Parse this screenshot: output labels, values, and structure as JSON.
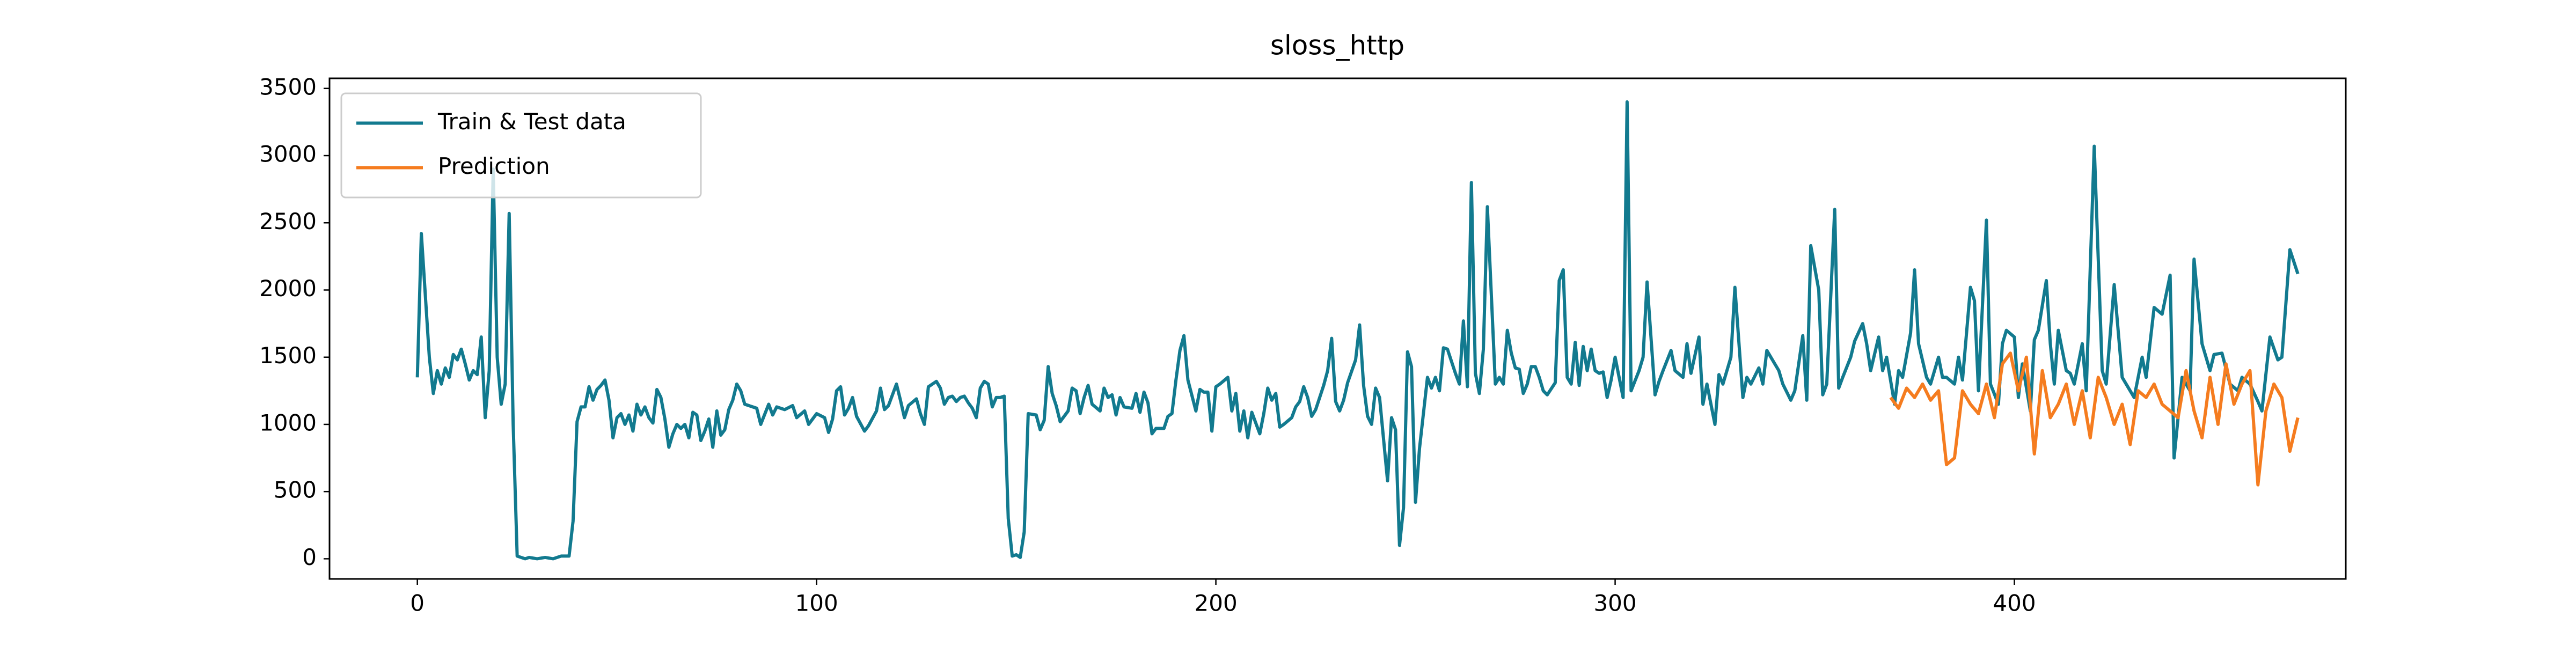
{
  "chart_data": {
    "type": "line",
    "title": "sloss_http",
    "xlim": [
      -22,
      483
    ],
    "ylim": [
      -150,
      3575
    ],
    "xticks": [
      0,
      100,
      200,
      300,
      400
    ],
    "yticks": [
      0,
      500,
      1000,
      1500,
      2000,
      2500,
      3000,
      3500
    ],
    "grid": false,
    "legend": "upper left",
    "series": [
      {
        "name": "Train & Test data",
        "color": "#127a8f",
        "x": [
          0,
          1,
          3,
          4,
          5,
          6,
          7,
          8,
          9,
          10,
          11,
          12,
          13,
          14,
          15,
          16,
          17,
          18,
          19,
          20,
          21,
          22,
          23,
          24,
          25,
          27,
          28,
          30,
          32,
          34,
          36,
          38,
          39,
          40,
          41,
          42,
          43,
          44,
          45,
          46,
          47,
          48,
          49,
          50,
          51,
          52,
          53,
          54,
          55,
          56,
          57,
          58,
          59,
          60,
          61,
          62,
          63,
          64,
          65,
          66,
          67,
          68,
          69,
          70,
          71,
          72,
          73,
          74,
          75,
          76,
          77,
          78,
          79,
          80,
          81,
          82,
          84,
          85,
          86,
          88,
          89,
          90,
          92,
          94,
          95,
          97,
          98,
          100,
          102,
          103,
          104,
          105,
          106,
          107,
          108,
          109,
          110,
          112,
          113,
          115,
          116,
          117,
          118,
          119,
          120,
          121,
          122,
          123,
          125,
          126,
          127,
          128,
          130,
          131,
          132,
          133,
          134,
          135,
          136,
          137,
          138,
          139,
          140,
          141,
          142,
          143,
          144,
          145,
          146,
          147,
          148,
          149,
          150,
          151,
          152,
          153,
          155,
          156,
          157,
          158,
          159,
          160,
          161,
          163,
          164,
          165,
          166,
          167,
          168,
          169,
          171,
          172,
          173,
          174,
          175,
          176,
          177,
          179,
          180,
          181,
          182,
          183,
          184,
          185,
          187,
          188,
          189,
          190,
          191,
          192,
          193,
          195,
          196,
          197,
          198,
          199,
          200,
          201,
          203,
          204,
          205,
          206,
          207,
          208,
          209,
          211,
          212,
          213,
          214,
          215,
          216,
          217,
          219,
          220,
          221,
          222,
          223,
          224,
          225,
          227,
          228,
          229,
          230,
          231,
          232,
          233,
          235,
          236,
          237,
          238,
          239,
          240,
          241,
          243,
          244,
          245,
          246,
          247,
          248,
          249,
          250,
          251,
          253,
          254,
          255,
          256,
          257,
          258,
          260,
          261,
          262,
          263,
          264,
          265,
          266,
          267,
          268,
          270,
          271,
          272,
          273,
          274,
          275,
          276,
          277,
          278,
          279,
          280,
          281,
          282,
          283,
          285,
          286,
          287,
          288,
          289,
          290,
          291,
          292,
          293,
          294,
          295,
          296,
          297,
          298,
          299,
          300,
          302,
          303,
          304,
          306,
          307,
          308,
          310,
          311,
          312,
          314,
          315,
          317,
          318,
          319,
          321,
          322,
          323,
          325,
          326,
          327,
          329,
          330,
          332,
          333,
          334,
          336,
          337,
          338,
          340,
          341,
          342,
          344,
          345,
          347,
          348,
          349,
          351,
          352,
          353,
          355,
          356,
          357,
          359,
          360,
          362,
          363,
          364,
          366,
          367,
          368,
          370,
          371,
          372,
          374,
          375,
          376,
          378,
          379,
          381,
          382,
          383,
          385,
          386,
          387,
          389,
          390,
          391,
          393,
          394,
          396,
          397,
          398,
          400,
          401,
          402,
          404,
          405,
          406,
          408,
          409,
          410,
          411,
          413,
          414,
          415,
          417,
          418,
          420,
          422,
          423,
          425,
          427,
          428,
          430,
          432,
          433,
          435,
          437,
          439,
          440,
          442,
          444,
          445,
          447,
          449,
          450,
          452,
          454,
          456,
          457,
          459,
          461,
          462,
          464,
          466,
          467,
          469,
          471
        ],
        "values": [
          1350,
          2420,
          1500,
          1230,
          1400,
          1300,
          1420,
          1350,
          1520,
          1480,
          1560,
          1450,
          1330,
          1400,
          1370,
          1650,
          1050,
          1400,
          2900,
          1500,
          1150,
          1300,
          2570,
          1000,
          20,
          0,
          10,
          0,
          10,
          0,
          20,
          20,
          280,
          1020,
          1130,
          1130,
          1280,
          1180,
          1260,
          1290,
          1330,
          1180,
          900,
          1050,
          1080,
          1000,
          1070,
          950,
          1150,
          1070,
          1130,
          1050,
          1010,
          1260,
          1200,
          1040,
          830,
          930,
          1000,
          970,
          1000,
          900,
          1090,
          1070,
          880,
          950,
          1040,
          830,
          1100,
          920,
          960,
          1110,
          1180,
          1300,
          1250,
          1150,
          1130,
          1120,
          1000,
          1150,
          1070,
          1130,
          1110,
          1140,
          1050,
          1100,
          1000,
          1080,
          1050,
          940,
          1040,
          1250,
          1280,
          1070,
          1120,
          1200,
          1060,
          950,
          990,
          1100,
          1270,
          1110,
          1140,
          1220,
          1300,
          1180,
          1050,
          1140,
          1190,
          1080,
          1000,
          1280,
          1320,
          1270,
          1150,
          1200,
          1210,
          1170,
          1200,
          1210,
          1160,
          1120,
          1050,
          1270,
          1320,
          1300,
          1130,
          1200,
          1200,
          1210,
          300,
          20,
          30,
          10,
          200,
          1080,
          1070,
          960,
          1030,
          1430,
          1230,
          1140,
          1020,
          1100,
          1270,
          1250,
          1080,
          1200,
          1290,
          1150,
          1100,
          1270,
          1200,
          1220,
          1070,
          1200,
          1130,
          1120,
          1230,
          1090,
          1240,
          1160,
          930,
          970,
          970,
          1060,
          1080,
          1330,
          1550,
          1660,
          1330,
          1100,
          1260,
          1240,
          1240,
          950,
          1280,
          1300,
          1350,
          1100,
          1230,
          950,
          1100,
          900,
          1090,
          930,
          1080,
          1270,
          1180,
          1230,
          980,
          1000,
          1050,
          1130,
          1170,
          1280,
          1200,
          1060,
          1110,
          1290,
          1400,
          1640,
          1170,
          1100,
          1180,
          1310,
          1480,
          1740,
          1290,
          1060,
          1000,
          1270,
          1200,
          580,
          1050,
          960,
          100,
          380,
          1540,
          1430,
          420,
          820,
          1350,
          1270,
          1350,
          1250,
          1570,
          1560,
          1380,
          1300,
          1770,
          1280,
          2800,
          1380,
          1230,
          1560,
          2620,
          1300,
          1350,
          1300,
          1700,
          1530,
          1420,
          1410,
          1230,
          1300,
          1430,
          1430,
          1350,
          1250,
          1220,
          1310,
          2070,
          2150,
          1350,
          1300,
          1610,
          1290,
          1580,
          1400,
          1560,
          1400,
          1380,
          1390,
          1200,
          1330,
          1500,
          1200,
          3400,
          1250,
          1400,
          1500,
          2060,
          1220,
          1320,
          1400,
          1550,
          1400,
          1350,
          1600,
          1380,
          1650,
          1150,
          1300,
          1000,
          1370,
          1300,
          1500,
          2020,
          1200,
          1350,
          1300,
          1420,
          1300,
          1550,
          1450,
          1400,
          1300,
          1180,
          1250,
          1660,
          1180,
          2330,
          2000,
          1220,
          1300,
          2600,
          1270,
          1350,
          1500,
          1620,
          1750,
          1600,
          1400,
          1650,
          1400,
          1500,
          1150,
          1400,
          1350,
          1680,
          2150,
          1600,
          1350,
          1300,
          1500,
          1350,
          1350,
          1300,
          1500,
          1330,
          2020,
          1920,
          1250,
          2520,
          1300,
          1150,
          1600,
          1700,
          1650,
          1200,
          1450,
          1100,
          1630,
          1700,
          2070,
          1600,
          1300,
          1700,
          1400,
          1380,
          1300,
          1600,
          1250,
          3070,
          1400,
          1300,
          2040,
          1350,
          1300,
          1200,
          1500,
          1350,
          1870,
          1820,
          2110,
          750,
          1350,
          1250,
          2230,
          1600,
          1400,
          1520,
          1530,
          1300,
          1250,
          1350,
          1300,
          1170,
          1100,
          1650,
          1480,
          1500,
          2300,
          2120
        ]
      },
      {
        "name": "Prediction",
        "color": "#f57c1f",
        "x": [
          369,
          371,
          373,
          375,
          377,
          379,
          381,
          383,
          385,
          387,
          389,
          391,
          393,
          395,
          397,
          399,
          401,
          403,
          405,
          407,
          409,
          411,
          413,
          415,
          417,
          419,
          421,
          423,
          425,
          427,
          429,
          431,
          433,
          435,
          437,
          439,
          441,
          443,
          445,
          447,
          449,
          451,
          453,
          455,
          457,
          459,
          461,
          463,
          465,
          467,
          469,
          471
        ],
        "values": [
          1200,
          1120,
          1270,
          1200,
          1300,
          1180,
          1250,
          700,
          750,
          1250,
          1150,
          1080,
          1300,
          1050,
          1450,
          1530,
          1250,
          1500,
          780,
          1400,
          1050,
          1150,
          1300,
          1000,
          1250,
          900,
          1350,
          1200,
          1000,
          1150,
          850,
          1250,
          1200,
          1300,
          1150,
          1100,
          1050,
          1400,
          1100,
          900,
          1350,
          1000,
          1450,
          1150,
          1300,
          1400,
          550,
          1100,
          1300,
          1200,
          800,
          1050
        ]
      }
    ]
  }
}
